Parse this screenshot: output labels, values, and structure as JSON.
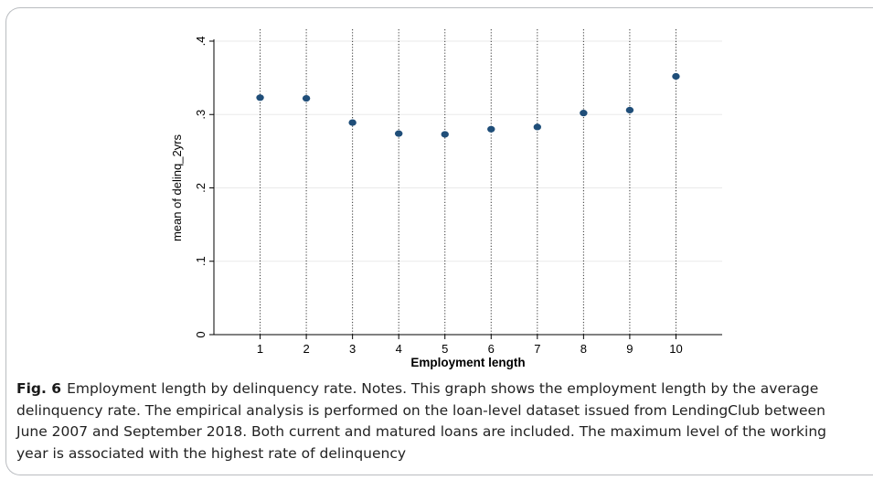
{
  "chart_data": {
    "type": "scatter",
    "xlabel": "Employment length",
    "ylabel": "mean of delinq_2yrs",
    "x": [
      1,
      2,
      3,
      4,
      5,
      6,
      7,
      8,
      9,
      10
    ],
    "y": [
      0.323,
      0.322,
      0.289,
      0.274,
      0.273,
      0.28,
      0.283,
      0.302,
      0.306,
      0.352
    ],
    "xlim": [
      0,
      11
    ],
    "ylim": [
      0,
      0.4
    ],
    "x_ticks": [
      "1",
      "2",
      "3",
      "4",
      "5",
      "6",
      "7",
      "8",
      "9",
      "10"
    ],
    "y_ticks": [
      {
        "value": 0,
        "label": "0"
      },
      {
        "value": 0.1,
        "label": ".1"
      },
      {
        "value": 0.2,
        "label": ".2"
      },
      {
        "value": 0.3,
        "label": ".3"
      },
      {
        "value": 0.4,
        "label": ".4"
      }
    ],
    "grid": "horizontal light lines at y ticks; dotted vertical lines at each x category",
    "marker_color": "#1f4e79"
  },
  "caption": {
    "label": "Fig. 6",
    "text": "Employment length by delinquency rate. Notes. This graph shows the employment length by the average delinquency rate. The empirical analysis is performed on the loan-level dataset issued from LendingClub between June 2007 and September 2018. Both current and matured loans are included. The maximum level of the working year is associated with the highest rate of delinquency"
  },
  "colors": {
    "marker": "#1f4e79",
    "axis": "#000000",
    "frame_border": "#b9bcc0",
    "grid": "#eaeaea"
  }
}
